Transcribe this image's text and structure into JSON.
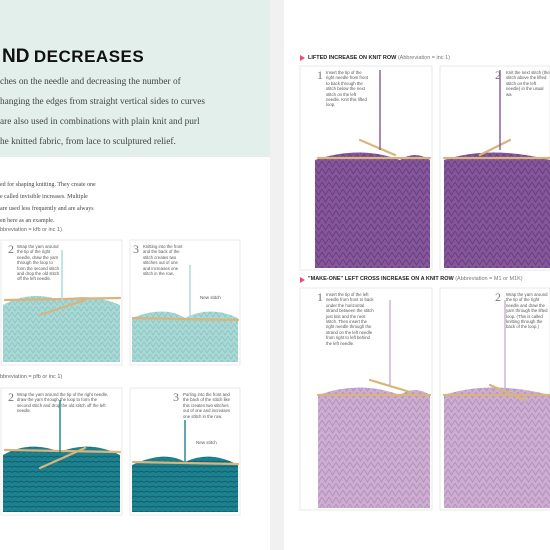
{
  "header": {
    "title_prefix": "ND",
    "title": "DECREASES",
    "lines": [
      "ches on the needle and decreasing the number of",
      "hanging the edges from straight vertical sides to curves",
      "are also used in combinations with plain knit and purl",
      "he knitted fabric, from lace to sculptured relief."
    ]
  },
  "intro": {
    "lines": [
      "ed for shaping knitting. They create one",
      "e called invisible increases. Multiple",
      "are used less frequently and are always",
      "en here as an example."
    ]
  },
  "left_sections": [
    {
      "label": "bbreviation = kfb or inc 1)",
      "steps": [
        {
          "number": "2",
          "text": "Wrap the yarn around the tip of the right needle, draw the yarn through the loop to form the second stitch and drop the old stitch off the left needle."
        },
        {
          "number": "3",
          "text": "Knitting into the front and the back of the stitch creates two stitches out of one and increases one stitch in the row.",
          "callout": "New stitch"
        }
      ]
    },
    {
      "label": "bbreviation = pfb or inc 1)",
      "steps": [
        {
          "number": "2",
          "text": "Wrap the yarn around the tip of the right needle, draw the yarn through the loop to form the second stitch and drop the old stitch off the left needle."
        },
        {
          "number": "3",
          "text": "Purling into the front and the back of the stitch like this creates two stitches out of one and increases one stitch in the row.",
          "callout": "New stitch"
        }
      ]
    }
  ],
  "right_sections": [
    {
      "heading": "LIFTED INCREASE ON KNIT ROW",
      "abbreviation": "(Abbreviation = inc 1)",
      "steps": [
        {
          "number": "1",
          "text": "Insert the tip of the right needle from front to back through the stitch below the next stitch on the left needle. Knit this lifted loop."
        },
        {
          "number": "2",
          "text": "Knit the next stitch (the stitch above the lifted stitch on the left needle) in the usual wa"
        }
      ]
    },
    {
      "heading": "\"MAKE-ONE\" LEFT CROSS INCREASE ON A KNIT ROW",
      "abbreviation": "(Abbreviation = M1 or M1K)",
      "steps": [
        {
          "number": "1",
          "text": "Insert the tip of the left needle from front to back under the horizontal strand between the stitch just knit and the next stitch. Then insert the right needle through the strand on the left needle from right to left behind the left needle."
        },
        {
          "number": "2",
          "text": "Wrap the yarn around the tip of the right needle and draw the yarn through the lifted loop. (This is called knitting through the back of the loop.)"
        }
      ]
    }
  ]
}
